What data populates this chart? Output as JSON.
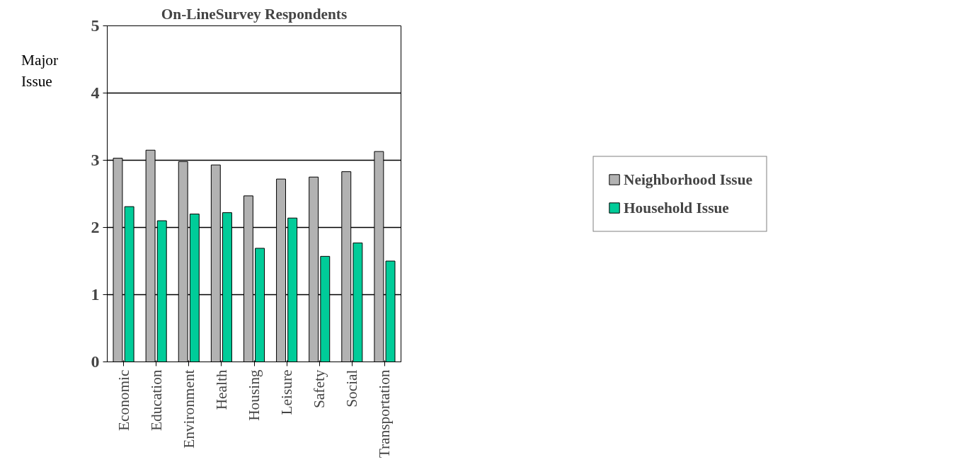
{
  "chart_data": {
    "type": "bar",
    "title": "On-LineSurvey Respondents",
    "ylabel": "Major\nIssue",
    "categories": [
      "Economic",
      "Education",
      "Environment",
      "Health",
      "Housing",
      "Leisure",
      "Safety",
      "Social",
      "Transportation"
    ],
    "series": [
      {
        "name": "Neighborhood Issue",
        "color": "#b2b2b2",
        "values": [
          3.03,
          3.15,
          2.98,
          2.93,
          2.47,
          2.72,
          2.75,
          2.83,
          3.13
        ]
      },
      {
        "name": "Household Issue",
        "color": "#00cc99",
        "values": [
          2.31,
          2.1,
          2.2,
          2.22,
          1.69,
          2.14,
          1.57,
          1.77,
          1.5
        ]
      }
    ],
    "ylim": [
      0,
      5
    ],
    "yticks": [
      0,
      1,
      2,
      3,
      4,
      5
    ],
    "grid": "y",
    "legend": "right"
  }
}
